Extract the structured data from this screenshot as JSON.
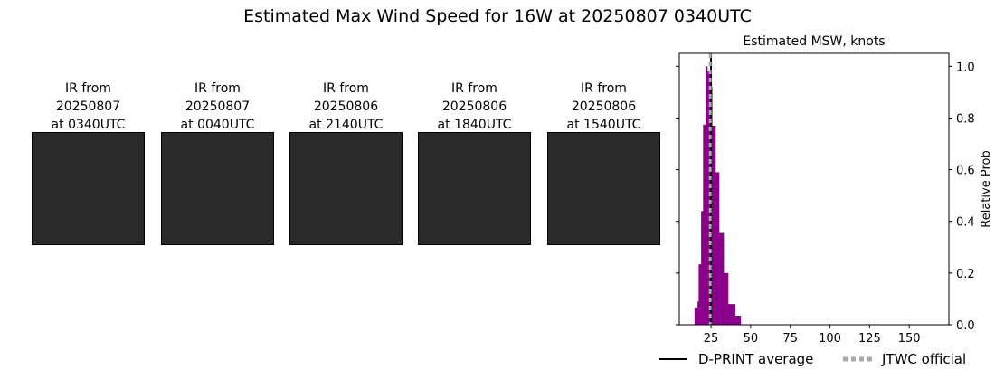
{
  "title": "Estimated Max Wind Speed for 16W at 20250807 0340UTC",
  "ir_images": [
    {
      "line1": "IR from",
      "line2": "20250807",
      "line3": "at 0340UTC"
    },
    {
      "line1": "IR from",
      "line2": "20250807",
      "line3": "at 0040UTC"
    },
    {
      "line1": "IR from",
      "line2": "20250806",
      "line3": "at 2140UTC"
    },
    {
      "line1": "IR from",
      "line2": "20250806",
      "line3": "at 1840UTC"
    },
    {
      "line1": "IR from",
      "line2": "20250806",
      "line3": "at 1540UTC"
    }
  ],
  "chart_data": {
    "type": "bar",
    "title": "Estimated MSW, knots",
    "xlabel": "",
    "ylabel": "Relative Prob",
    "xlim": [
      5,
      175
    ],
    "ylim": [
      0,
      1.05
    ],
    "xticks": [
      25,
      50,
      75,
      100,
      125,
      150
    ],
    "yticks": [
      "0.0",
      "0.2",
      "0.4",
      "0.6",
      "0.8",
      "1.0"
    ],
    "bar_color": "#8b008b",
    "bins": [
      [
        14.6,
        16.5,
        0.067
      ],
      [
        16.5,
        17.2,
        0.09
      ],
      [
        17.2,
        18.75,
        0.234
      ],
      [
        18.75,
        20,
        0.44
      ],
      [
        20,
        21.6,
        0.774
      ],
      [
        21.6,
        22.7,
        1.0
      ],
      [
        22.7,
        23.5,
        0.98
      ],
      [
        23.5,
        24.8,
        0.97
      ],
      [
        24.8,
        25.7,
        0.92
      ],
      [
        25.7,
        27.8,
        0.77
      ],
      [
        27.8,
        30.1,
        0.59
      ],
      [
        30.1,
        33,
        0.355
      ],
      [
        33,
        35.8,
        0.2
      ],
      [
        35.8,
        40.2,
        0.08
      ],
      [
        40.2,
        43.7,
        0.035
      ]
    ],
    "dprint_average": 25,
    "jtwc_official": 24.5,
    "legend": {
      "placement": "bottom",
      "dprint_label": "D-PRINT average",
      "jtwc_label": "JTWC official"
    }
  }
}
